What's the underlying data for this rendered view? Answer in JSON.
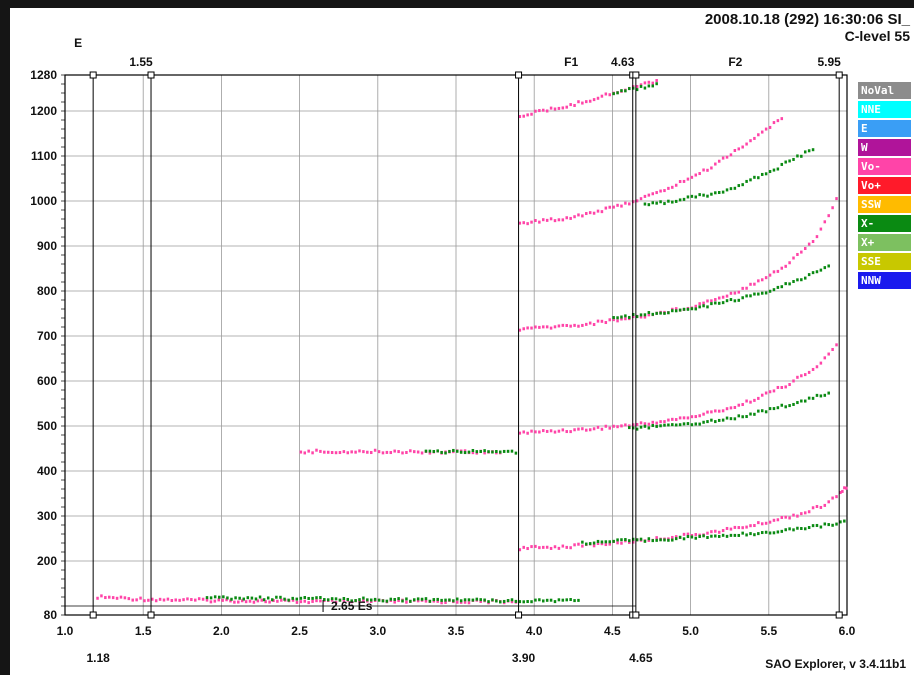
{
  "header": {
    "line1": "2008.10.18 (292) 16:30:06 SI_",
    "line2": "C-level 55"
  },
  "footer": "SAO Explorer, v 3.4.11b1",
  "colors": {
    "pink": "#ff44a8",
    "magenta": "#b0149a",
    "green": "#0a8a12",
    "grid": "#9a9a9a",
    "axis": "#000000"
  },
  "top_markers": [
    {
      "label": "E",
      "x": 1.18
    },
    {
      "label": "1.55",
      "x": 1.55
    },
    {
      "label": "F1",
      "x": 4.3
    },
    {
      "label": "4.63",
      "x": 4.63
    },
    {
      "label": "F2",
      "x": 5.35
    },
    {
      "label": "5.95",
      "x": 5.95
    }
  ],
  "bottom_markers": [
    {
      "label": "1.18",
      "x": 1.18
    },
    {
      "label": "3.90",
      "x": 3.9
    },
    {
      "label": "4.65",
      "x": 4.65
    }
  ],
  "es_label": "2.65  Es",
  "legend": [
    {
      "label": "NoVal",
      "color": "#8c8c8c"
    },
    {
      "label": "NNE",
      "color": "#00ffff"
    },
    {
      "label": "E",
      "color": "#3a9ef5"
    },
    {
      "label": "W",
      "color": "#b0149a"
    },
    {
      "label": "Vo-",
      "color": "#ff44a8"
    },
    {
      "label": "Vo+",
      "color": "#ff1a2a"
    },
    {
      "label": "SSW",
      "color": "#ffbb00"
    },
    {
      "label": "X-",
      "color": "#0a8a12"
    },
    {
      "label": "X+",
      "color": "#7dc060"
    },
    {
      "label": "SSE",
      "color": "#c8c800"
    },
    {
      "label": "NNW",
      "color": "#1a1aee"
    }
  ],
  "chart_data": {
    "type": "scatter",
    "title": "",
    "xlabel": "",
    "ylabel": "",
    "xlim": [
      1.0,
      6.0
    ],
    "ylim": [
      80,
      1280
    ],
    "xticks": [
      "1.0",
      "1.5",
      "2.0",
      "2.5",
      "3.0",
      "3.5",
      "4.0",
      "4.5",
      "5.0",
      "5.5",
      "6.0"
    ],
    "yticks": [
      "80",
      "200",
      "300",
      "400",
      "500",
      "600",
      "700",
      "800",
      "900",
      "1000",
      "1100",
      "1200",
      "1280"
    ],
    "vertical_markers": [
      1.18,
      1.55,
      3.9,
      4.63,
      4.65,
      5.95
    ],
    "series": [
      {
        "name": "Vo-",
        "color": "#ff44a8",
        "traces": [
          {
            "x": [
              1.2,
              1.5,
              2.0,
              2.5,
              3.0,
              3.5,
              3.9
            ],
            "y": [
              120,
              115,
              112,
              110,
              110,
              110,
              110
            ]
          },
          {
            "x": [
              3.9,
              4.2,
              4.5,
              4.8,
              5.1,
              5.4,
              5.7,
              5.85,
              5.95,
              6.0
            ],
            "y": [
              228,
              232,
              240,
              250,
              262,
              280,
              305,
              325,
              350,
              370
            ]
          },
          {
            "x": [
              3.9,
              4.3,
              4.7,
              5.0,
              5.3,
              5.6,
              5.8,
              5.95
            ],
            "y": [
              485,
              492,
              505,
              520,
              545,
              590,
              630,
              690
            ]
          },
          {
            "x": [
              3.9,
              4.3,
              4.7,
              5.0,
              5.3,
              5.6,
              5.8,
              5.95
            ],
            "y": [
              715,
              725,
              745,
              765,
              800,
              855,
              920,
              1020
            ]
          },
          {
            "x": [
              3.9,
              4.2,
              4.5,
              4.8,
              5.1,
              5.4,
              5.6
            ],
            "y": [
              950,
              962,
              985,
              1020,
              1070,
              1140,
              1190
            ]
          },
          {
            "x": [
              3.9,
              4.2,
              4.6,
              4.8
            ],
            "y": [
              1190,
              1210,
              1250,
              1270
            ]
          },
          {
            "x": [
              2.5,
              2.8,
              3.2,
              3.6,
              3.8
            ],
            "y": [
              443,
              443,
              443,
              443,
              443
            ]
          }
        ]
      },
      {
        "name": "X-",
        "color": "#0a8a12",
        "traces": [
          {
            "x": [
              1.9,
              2.5,
              3.0,
              3.5,
              3.9,
              4.3
            ],
            "y": [
              118,
              116,
              114,
              113,
              112,
              113
            ]
          },
          {
            "x": [
              4.3,
              4.6,
              5.0,
              5.3,
              5.6,
              5.9,
              6.0
            ],
            "y": [
              240,
              245,
              252,
              258,
              268,
              282,
              290
            ]
          },
          {
            "x": [
              4.6,
              5.0,
              5.3,
              5.6,
              5.9
            ],
            "y": [
              495,
              505,
              520,
              545,
              575
            ]
          },
          {
            "x": [
              4.5,
              5.0,
              5.4,
              5.7,
              5.9
            ],
            "y": [
              740,
              760,
              790,
              825,
              860
            ]
          },
          {
            "x": [
              4.7,
              5.2,
              5.5,
              5.8
            ],
            "y": [
              990,
              1020,
              1065,
              1120
            ]
          },
          {
            "x": [
              4.5,
              4.8
            ],
            "y": [
              1240,
              1260
            ]
          },
          {
            "x": [
              3.3,
              3.6,
              3.9
            ],
            "y": [
              443,
              443,
              443
            ]
          }
        ]
      }
    ]
  }
}
